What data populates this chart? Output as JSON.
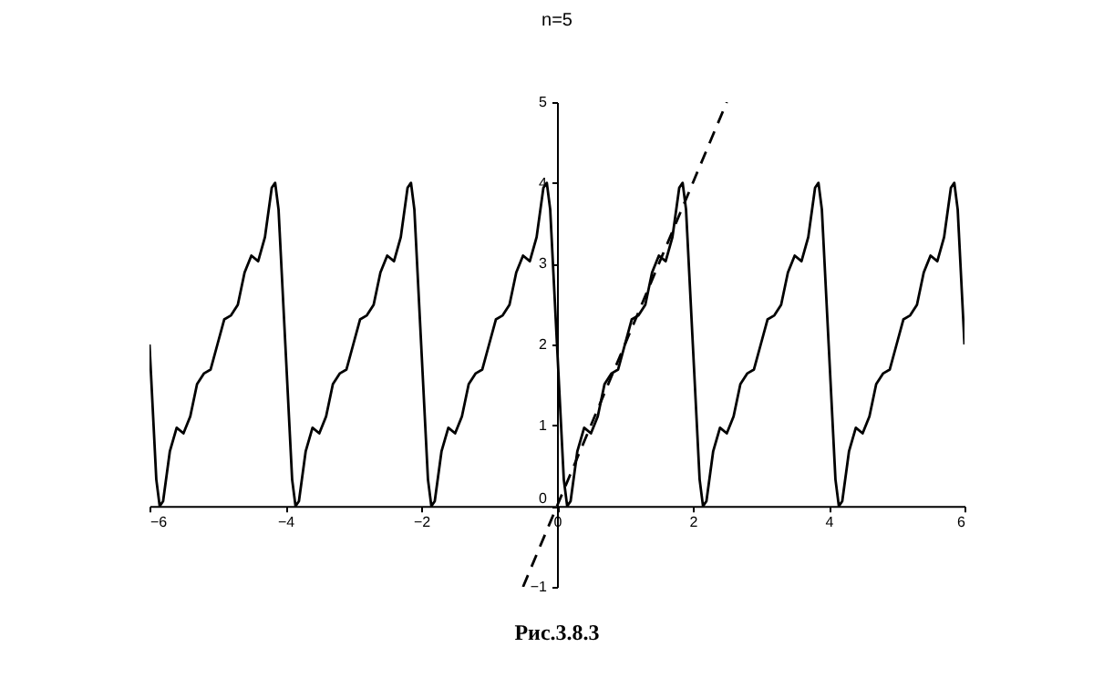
{
  "chart_data": {
    "type": "line",
    "title": "n=5",
    "annotations": [
      "Рис.3.8.3"
    ],
    "xlim": [
      -6,
      6
    ],
    "xticks": [
      -6,
      -4,
      -2,
      0,
      2,
      4,
      6
    ],
    "ylim": [
      -1,
      5
    ],
    "yticks": [
      -1,
      0,
      1,
      2,
      3,
      4,
      5
    ],
    "grid": false,
    "series": [
      {
        "color": "#000000",
        "line_style": "solid",
        "x": [
          -6,
          -5.9,
          -5.85,
          -5.8,
          -5.7,
          -5.6,
          -5.5,
          -5.4,
          -5.3,
          -5.2,
          -5.1,
          -5,
          -4.9,
          -4.8,
          -4.7,
          -4.6,
          -4.5,
          -4.4,
          -4.3,
          -4.2,
          -4.15,
          -4.1,
          -4,
          -3.9,
          -3.85,
          -3.8,
          -3.7,
          -3.6,
          -3.5,
          -3.4,
          -3.3,
          -3.2,
          -3.1,
          -3,
          -2.9,
          -2.8,
          -2.7,
          -2.6,
          -2.5,
          -2.4,
          -2.3,
          -2.2,
          -2.15,
          -2.1,
          -2,
          -1.9,
          -1.85,
          -1.8,
          -1.7,
          -1.6,
          -1.5,
          -1.4,
          -1.3,
          -1.2,
          -1.1,
          -1,
          -0.9,
          -0.8,
          -0.7,
          -0.6,
          -0.5,
          -0.4,
          -0.3,
          -0.2,
          -0.15,
          -0.1,
          0,
          0.1,
          0.15,
          0.2,
          0.3,
          0.4,
          0.5,
          0.6,
          0.7,
          0.8,
          0.9,
          1,
          1.1,
          1.2,
          1.3,
          1.4,
          1.5,
          1.6,
          1.7,
          1.8,
          1.85,
          1.9,
          2,
          2.1,
          2.15,
          2.2,
          2.3,
          2.4,
          2.5,
          2.6,
          2.7,
          2.8,
          2.9,
          3,
          3.1,
          3.2,
          3.3,
          3.4,
          3.5,
          3.6,
          3.7,
          3.8,
          3.85,
          3.9,
          4,
          4.1,
          4.15,
          4.2,
          4.3,
          4.4,
          4.5,
          4.6,
          4.7,
          4.8,
          4.9,
          5,
          5.1,
          5.2,
          5.3,
          5.4,
          5.5,
          5.6,
          5.7,
          5.8,
          5.85,
          5.9,
          6
        ],
        "values": [
          2,
          0.33,
          0,
          0.06,
          0.68,
          0.97,
          0.9,
          1.11,
          1.51,
          1.64,
          1.69,
          2,
          2.31,
          2.36,
          2.49,
          2.89,
          3.1,
          3.03,
          3.33,
          3.94,
          4,
          3.67,
          2,
          0.33,
          0,
          0.06,
          0.68,
          0.97,
          0.9,
          1.11,
          1.51,
          1.64,
          1.69,
          2,
          2.31,
          2.36,
          2.49,
          2.89,
          3.1,
          3.03,
          3.33,
          3.94,
          4,
          3.67,
          2,
          0.33,
          0,
          0.06,
          0.68,
          0.97,
          0.9,
          1.11,
          1.51,
          1.64,
          1.69,
          2,
          2.31,
          2.36,
          2.49,
          2.89,
          3.1,
          3.03,
          3.33,
          3.94,
          4,
          3.67,
          2,
          0.33,
          0,
          0.06,
          0.68,
          0.97,
          0.9,
          1.11,
          1.51,
          1.64,
          1.69,
          2,
          2.31,
          2.36,
          2.49,
          2.89,
          3.1,
          3.03,
          3.33,
          3.94,
          4,
          3.67,
          2,
          0.33,
          0,
          0.06,
          0.68,
          0.97,
          0.9,
          1.11,
          1.51,
          1.64,
          1.69,
          2,
          2.31,
          2.36,
          2.49,
          2.89,
          3.1,
          3.03,
          3.33,
          3.94,
          4,
          3.67,
          2,
          0.33,
          0,
          0.06,
          0.68,
          0.97,
          0.9,
          1.11,
          1.51,
          1.64,
          1.69,
          2,
          2.31,
          2.36,
          2.49,
          2.89,
          3.1,
          3.03,
          3.33,
          3.94,
          4,
          3.67,
          2
        ]
      },
      {
        "color": "#000000",
        "line_style": "dashed",
        "x": [
          -0.5,
          2.5
        ],
        "values": [
          -1,
          5
        ]
      }
    ]
  }
}
